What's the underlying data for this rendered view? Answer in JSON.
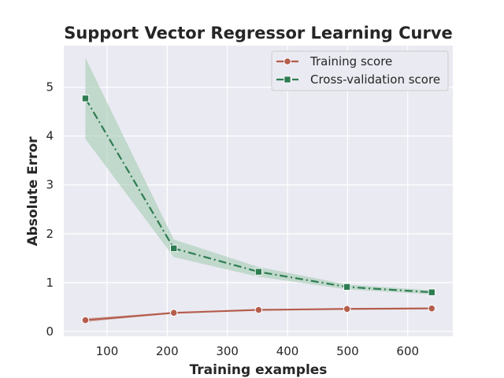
{
  "chart_data": {
    "type": "line",
    "title": "Support Vector Regressor Learning Curve",
    "xlabel": "Training examples",
    "ylabel": "Absolute Error",
    "xlim": [
      28,
      675
    ],
    "ylim": [
      -0.1,
      5.85
    ],
    "xticks": [
      100,
      200,
      300,
      400,
      500,
      600
    ],
    "yticks": [
      0,
      1,
      2,
      3,
      4,
      5
    ],
    "grid": true,
    "legend_position": "upper right",
    "x": [
      64,
      211,
      352,
      499,
      640
    ],
    "series": [
      {
        "name": "Training score",
        "values": [
          0.23,
          0.38,
          0.44,
          0.46,
          0.47
        ],
        "band_lower": [
          0.19,
          0.37,
          0.43,
          0.45,
          0.46
        ],
        "band_upper": [
          0.27,
          0.39,
          0.45,
          0.47,
          0.48
        ],
        "color": "#b55d4c",
        "band_color": "#c0968a",
        "marker": "circle",
        "line_style": "solid"
      },
      {
        "name": "Cross-validation score",
        "values": [
          4.77,
          1.7,
          1.22,
          0.91,
          0.8
        ],
        "band_lower": [
          3.94,
          1.52,
          1.12,
          0.86,
          0.76
        ],
        "band_upper": [
          5.6,
          1.88,
          1.32,
          0.96,
          0.84
        ],
        "color": "#2e7d52",
        "band_color": "#9fc9ad",
        "marker": "square",
        "line_style": "dashdot"
      }
    ]
  },
  "colors": {
    "plot_background": "#eaeaf2",
    "grid": "#ffffff",
    "text": "#262626"
  }
}
